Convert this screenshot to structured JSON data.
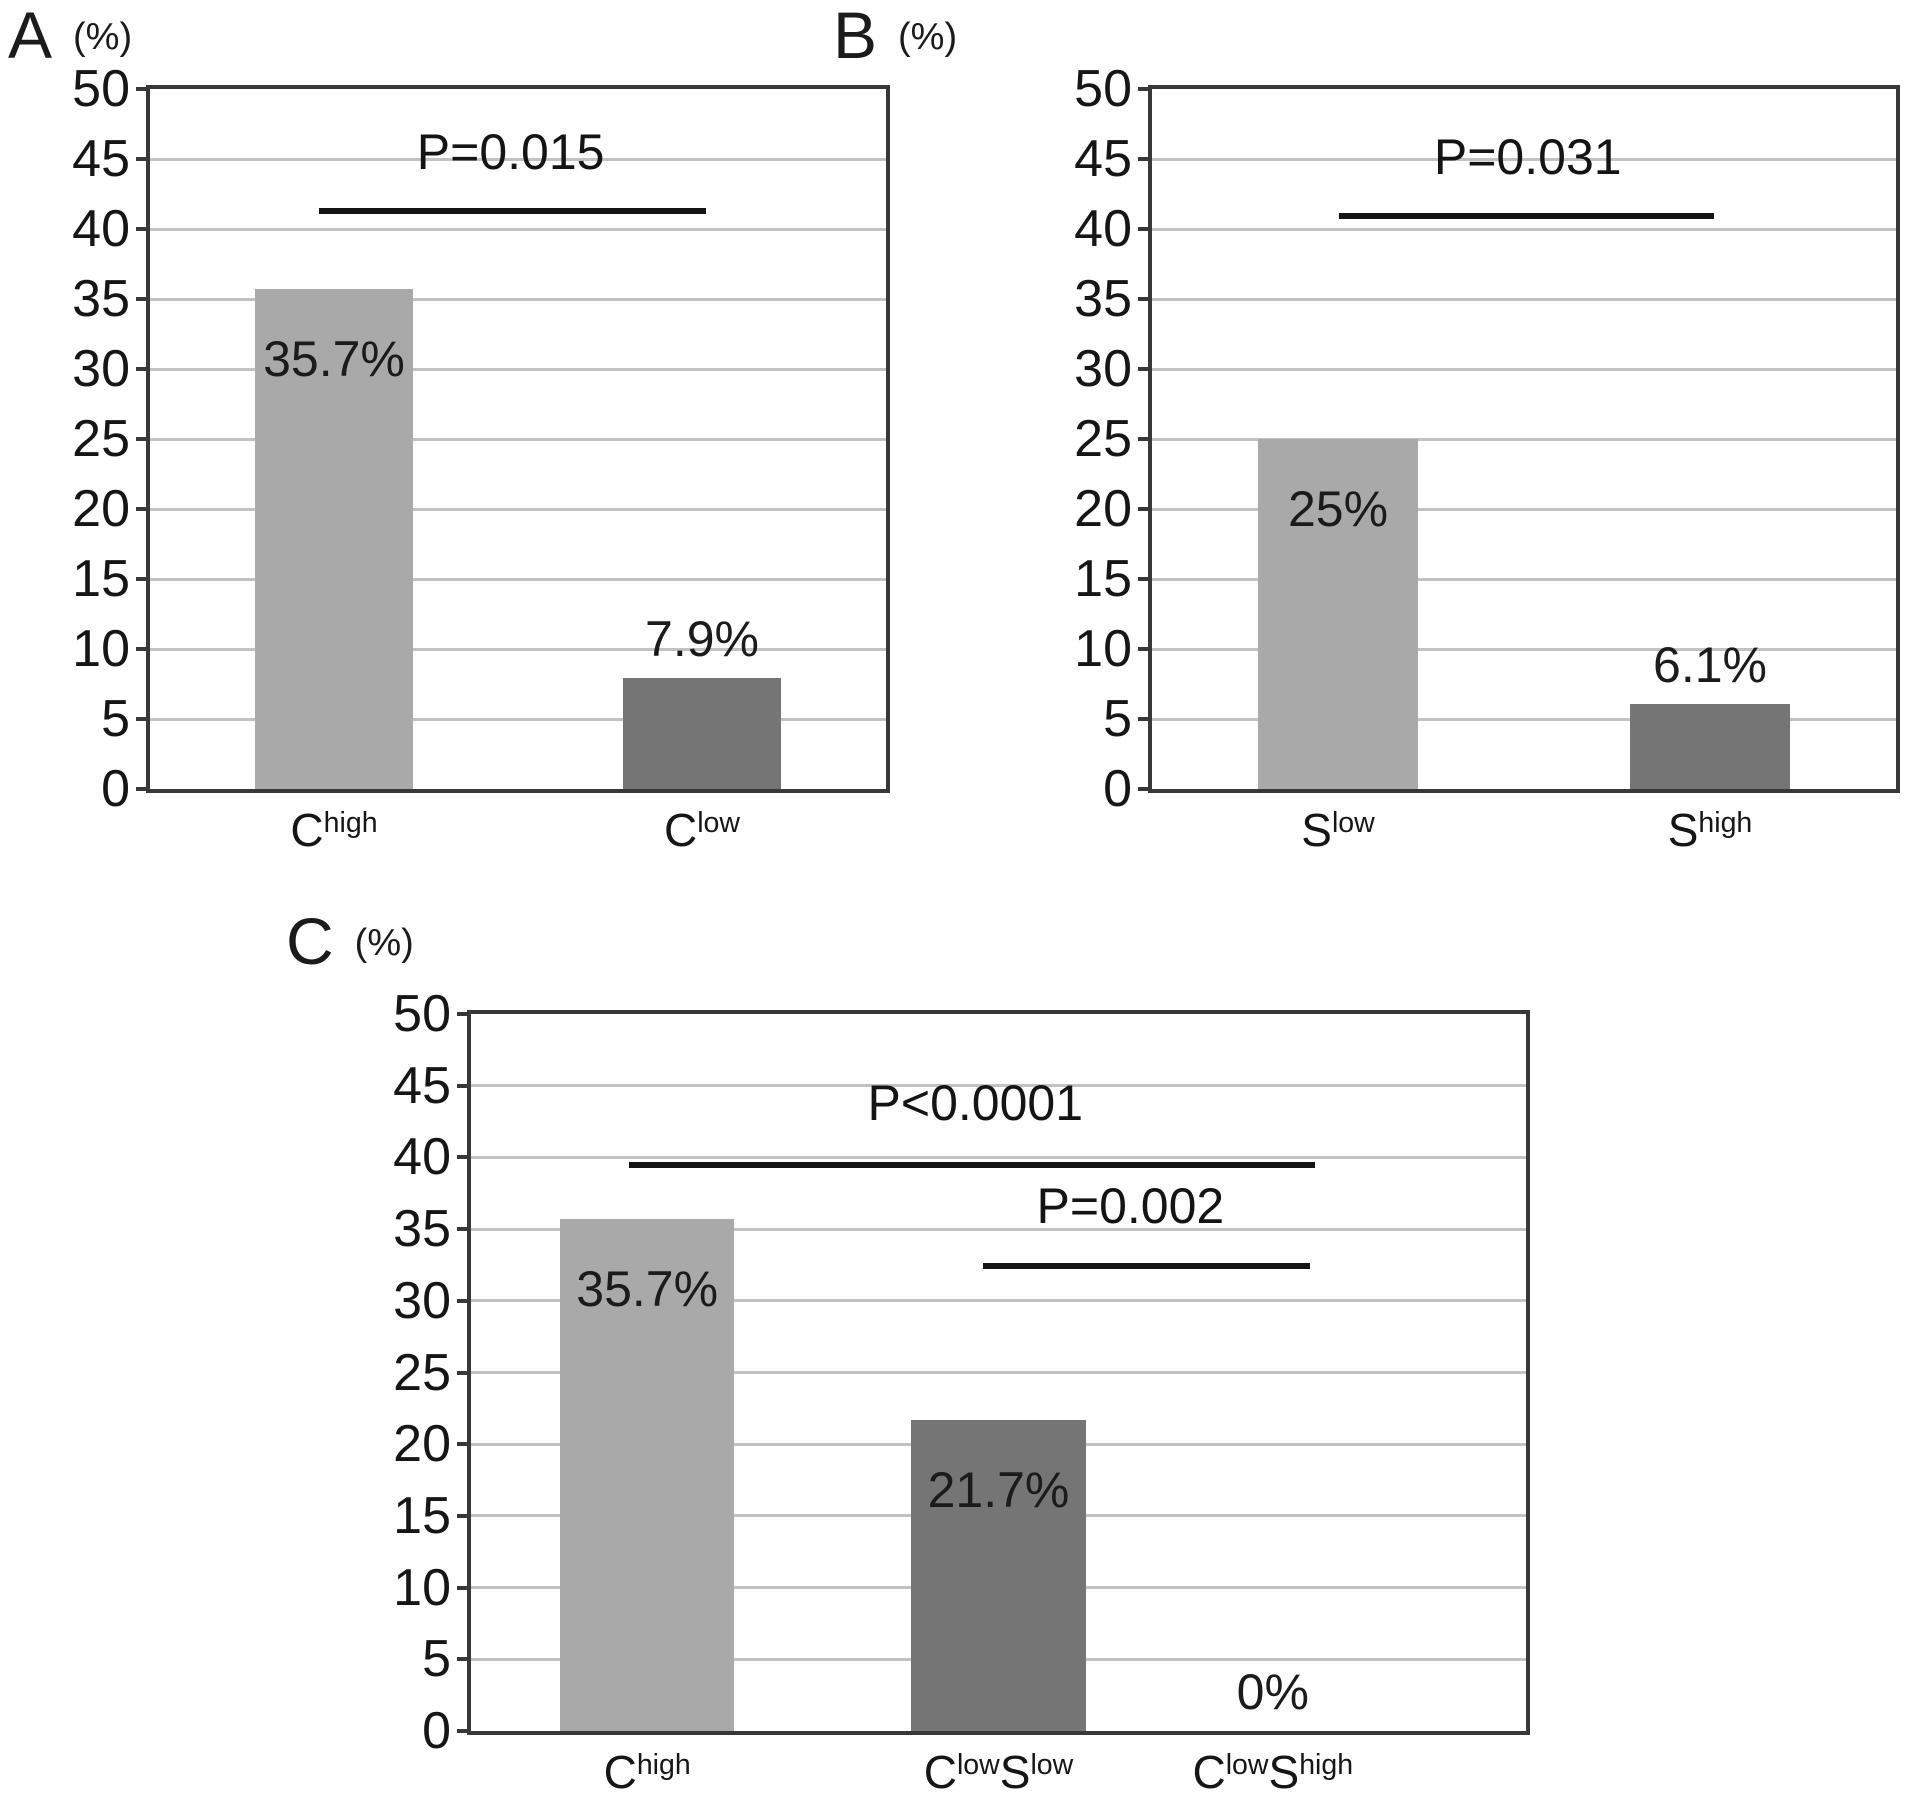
{
  "figure": {
    "background": "#ffffff",
    "description_labels": {
      "percent_unit": "(%)"
    }
  },
  "colors": {
    "bar_light": "#a9a9a9",
    "bar_dark": "#757575",
    "frame": "#383838",
    "gridline": "#c2c2c2",
    "sig_line": "#141414",
    "text": "#1b1b1b"
  },
  "chart_data": [
    {
      "id": "A",
      "type": "bar",
      "panel_label": "A",
      "axis_unit": "(%)",
      "ylim": [
        0,
        50
      ],
      "ytick_step": 5,
      "grid": true,
      "legend": "none",
      "bar_width_frac": 0.215,
      "categories": [
        {
          "parts": [
            "C",
            "^high"
          ],
          "center": 0.25
        },
        {
          "parts": [
            "C",
            "^low"
          ],
          "center": 0.75
        }
      ],
      "values": [
        35.7,
        7.9
      ],
      "value_labels": [
        "35.7%",
        "7.9%"
      ],
      "label_placement": [
        "inside",
        "above"
      ],
      "bar_colors": [
        "#a9a9a9",
        "#757575"
      ],
      "significance": [
        {
          "label": "P=0.015",
          "x1": 0.229,
          "x2": 0.756,
          "y": 41.3,
          "label_x": 0.49,
          "label_y": 43.6
        }
      ]
    },
    {
      "id": "B",
      "type": "bar",
      "panel_label": "B",
      "axis_unit": "(%)",
      "ylim": [
        0,
        50
      ],
      "ytick_step": 5,
      "grid": true,
      "legend": "none",
      "bar_width_frac": 0.215,
      "categories": [
        {
          "parts": [
            "S",
            "^low"
          ],
          "center": 0.25
        },
        {
          "parts": [
            "S",
            "^high"
          ],
          "center": 0.75
        }
      ],
      "values": [
        25,
        6.1
      ],
      "value_labels": [
        "25%",
        "6.1%"
      ],
      "label_placement": [
        "inside",
        "above"
      ],
      "bar_colors": [
        "#a9a9a9",
        "#757575"
      ],
      "significance": [
        {
          "label": "P=0.031",
          "x1": 0.251,
          "x2": 0.755,
          "y": 40.9,
          "label_x": 0.505,
          "label_y": 43.2
        }
      ]
    },
    {
      "id": "C",
      "type": "bar",
      "panel_label": "C",
      "axis_unit": "(%)",
      "ylim": [
        0,
        50
      ],
      "ytick_step": 5,
      "grid": true,
      "legend": "none",
      "bar_width_frac": 0.165,
      "categories": [
        {
          "parts": [
            "C",
            "^high"
          ],
          "center": 0.167
        },
        {
          "parts": [
            "C",
            "^low",
            "S",
            "^low"
          ],
          "center": 0.5
        },
        {
          "parts": [
            "C",
            "^low",
            "S",
            "^high"
          ],
          "center": 0.76
        }
      ],
      "values": [
        35.7,
        21.7,
        0
      ],
      "value_labels": [
        "35.7%",
        "21.7%",
        "0%"
      ],
      "label_placement": [
        "inside",
        "inside",
        "above"
      ],
      "bar_colors": [
        "#a9a9a9",
        "#757575",
        null
      ],
      "significance": [
        {
          "label": "P<0.0001",
          "x1": 0.15,
          "x2": 0.8,
          "y": 39.5,
          "label_x": 0.478,
          "label_y": 41.9
        },
        {
          "label": "P=0.002",
          "x1": 0.485,
          "x2": 0.795,
          "y": 32.4,
          "label_x": 0.625,
          "label_y": 34.7
        }
      ]
    }
  ]
}
